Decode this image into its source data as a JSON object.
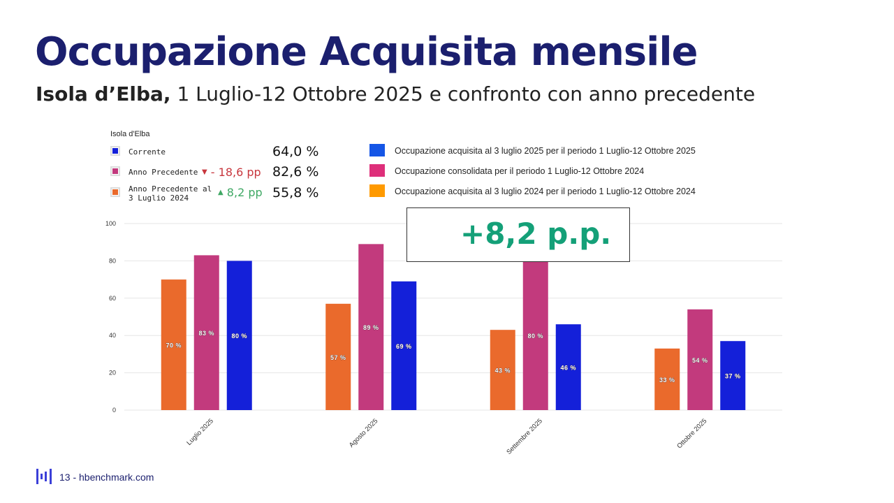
{
  "header": {
    "title": "Occupazione Acquisita mensile",
    "subtitle_bold": "Isola d’Elba,",
    "subtitle_rest": " 1 Luglio-12 Ottobre 2025 e confronto con anno precedente"
  },
  "panel": {
    "title": "Isola d'Elba",
    "rows": [
      {
        "label": "Corrente",
        "value": "64,0 %",
        "delta": "",
        "direction": "",
        "color": "#1420d9"
      },
      {
        "label": "Anno Precedente",
        "value": "82,6 %",
        "delta": "- 18,6 pp",
        "direction": "down",
        "color": "#c23a7d"
      },
      {
        "label_line1": "Anno Precedente al",
        "label_line2": "3 Luglio 2024",
        "value": "55,8 %",
        "delta": "8,2 pp",
        "direction": "up",
        "color": "#ea6a2c"
      }
    ]
  },
  "legend": [
    {
      "label": "Occupazione acquisita al 3 luglio 2025 per il periodo 1 Luglio-12 Ottobre 2025",
      "color": "#1556e6"
    },
    {
      "label": "Occupazione consolidata per il periodo 1 Luglio-12 Ottobre 2024",
      "color": "#de2f7a"
    },
    {
      "label": "Occupazione acquisita al 3 luglio 2024 per il periodo 1 Luglio-12 Ottobre 2024",
      "color": "#ff9a00"
    }
  ],
  "callout": "+8,2 p.p.",
  "footer": {
    "text": "13 - hbenchmark.com"
  },
  "chart_data": {
    "type": "bar",
    "categories": [
      "Luglio 2025",
      "Agosto 2025",
      "Settembre 2025",
      "Ottobre 2025"
    ],
    "series": [
      {
        "values": [
          70,
          57,
          43,
          33
        ],
        "labels": [
          "70 %",
          "57 %",
          "43 %",
          "33 %"
        ],
        "color": "#ea6a2c"
      },
      {
        "values": [
          83,
          89,
          80,
          54
        ],
        "labels": [
          "83 %",
          "89 %",
          "80 %",
          "54 %"
        ],
        "color": "#c23a7d"
      },
      {
        "values": [
          80,
          69,
          46,
          37
        ],
        "labels": [
          "80 %",
          "69 %",
          "46 %",
          "37 %"
        ],
        "color": "#1420d9"
      }
    ],
    "ylim": [
      0,
      100
    ],
    "yticks": [
      0,
      20,
      40,
      60,
      80,
      100
    ],
    "grid": true
  }
}
